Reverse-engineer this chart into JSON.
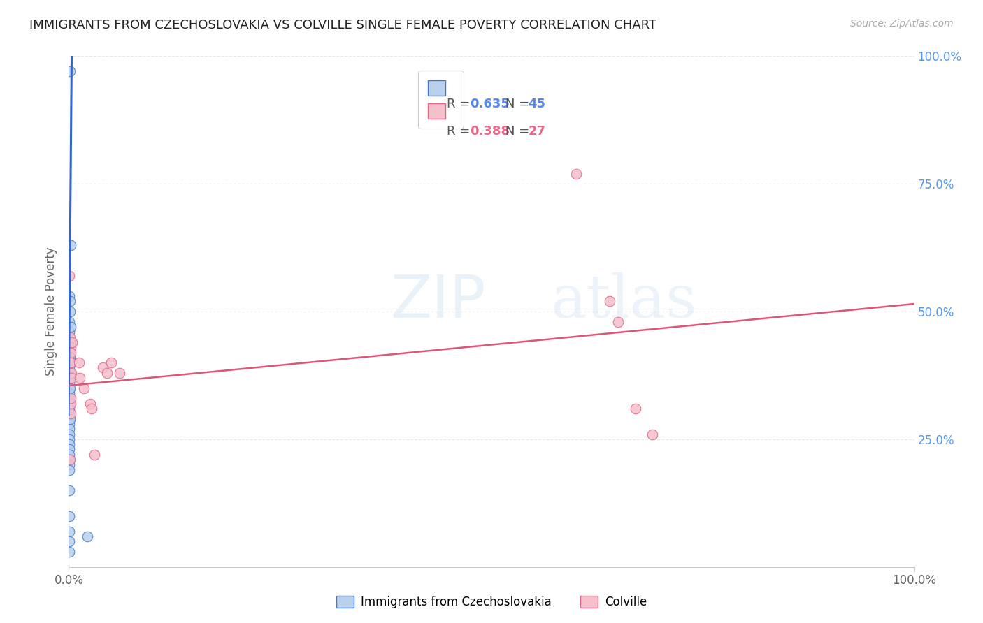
{
  "title": "IMMIGRANTS FROM CZECHOSLOVAKIA VS COLVILLE SINGLE FEMALE POVERTY CORRELATION CHART",
  "source": "Source: ZipAtlas.com",
  "ylabel": "Single Female Poverty",
  "legend_blue_r": "0.635",
  "legend_blue_n": "45",
  "legend_pink_r": "0.388",
  "legend_pink_n": "27",
  "legend_blue_label": "Immigrants from Czechoslovakia",
  "legend_pink_label": "Colville",
  "blue_fill": "#b8d0ec",
  "pink_fill": "#f5bfcc",
  "blue_edge": "#4477cc",
  "pink_edge": "#e06688",
  "blue_line_color": "#3366cc",
  "pink_line_color": "#dd5577",
  "blue_scatter": [
    [
      0.001,
      0.97
    ],
    [
      0.0005,
      0.53
    ],
    [
      0.0007,
      0.48
    ],
    [
      0.0004,
      0.46
    ],
    [
      0.0006,
      0.43
    ],
    [
      0.0008,
      0.42
    ],
    [
      0.0003,
      0.4
    ],
    [
      0.0005,
      0.39
    ],
    [
      0.0007,
      0.38
    ],
    [
      0.0004,
      0.37
    ],
    [
      0.0006,
      0.36
    ],
    [
      0.0003,
      0.35
    ],
    [
      0.0008,
      0.34
    ],
    [
      0.0005,
      0.33
    ],
    [
      0.0004,
      0.32
    ],
    [
      0.0006,
      0.31
    ],
    [
      0.0003,
      0.3
    ],
    [
      0.0007,
      0.29
    ],
    [
      0.0005,
      0.28
    ],
    [
      0.0004,
      0.27
    ],
    [
      0.0006,
      0.26
    ],
    [
      0.0003,
      0.25
    ],
    [
      0.0007,
      0.24
    ],
    [
      0.0005,
      0.23
    ],
    [
      0.0004,
      0.22
    ],
    [
      0.0006,
      0.21
    ],
    [
      0.0003,
      0.2
    ],
    [
      0.0007,
      0.19
    ],
    [
      0.0005,
      0.15
    ],
    [
      0.0004,
      0.1
    ],
    [
      0.0006,
      0.07
    ],
    [
      0.0003,
      0.05
    ],
    [
      0.0007,
      0.03
    ],
    [
      0.0015,
      0.52
    ],
    [
      0.0013,
      0.5
    ],
    [
      0.0018,
      0.47
    ],
    [
      0.0012,
      0.44
    ],
    [
      0.0016,
      0.41
    ],
    [
      0.0014,
      0.38
    ],
    [
      0.0017,
      0.35
    ],
    [
      0.0015,
      0.32
    ],
    [
      0.0013,
      0.29
    ],
    [
      0.0025,
      0.63
    ],
    [
      0.0022,
      0.4
    ],
    [
      0.022,
      0.06
    ]
  ],
  "pink_scatter": [
    [
      0.0008,
      0.57
    ],
    [
      0.0015,
      0.45
    ],
    [
      0.0018,
      0.43
    ],
    [
      0.0022,
      0.42
    ],
    [
      0.0025,
      0.4
    ],
    [
      0.003,
      0.38
    ],
    [
      0.002,
      0.32
    ],
    [
      0.0018,
      0.3
    ],
    [
      0.0012,
      0.21
    ],
    [
      0.0035,
      0.44
    ],
    [
      0.003,
      0.37
    ],
    [
      0.0025,
      0.33
    ],
    [
      0.012,
      0.4
    ],
    [
      0.013,
      0.37
    ],
    [
      0.018,
      0.35
    ],
    [
      0.025,
      0.32
    ],
    [
      0.027,
      0.31
    ],
    [
      0.03,
      0.22
    ],
    [
      0.04,
      0.39
    ],
    [
      0.045,
      0.38
    ],
    [
      0.05,
      0.4
    ],
    [
      0.06,
      0.38
    ],
    [
      0.6,
      0.77
    ],
    [
      0.64,
      0.52
    ],
    [
      0.65,
      0.48
    ],
    [
      0.67,
      0.31
    ],
    [
      0.69,
      0.26
    ]
  ],
  "blue_line": {
    "x0": -0.0003,
    "x1": 0.0035,
    "y0": 0.295,
    "y1": 1.02
  },
  "pink_line": {
    "x0": 0.0,
    "x1": 1.0,
    "y0": 0.355,
    "y1": 0.515
  },
  "watermark_line1": "ZIP",
  "watermark_line2": "atlas",
  "xlim": [
    0.0,
    1.0
  ],
  "ylim": [
    0.0,
    1.0
  ],
  "xticks": [
    0.0,
    1.0
  ],
  "yticks": [
    0.0,
    0.25,
    0.5,
    0.75,
    1.0
  ],
  "grid_color": "#e8e8e8",
  "title_fontsize": 13,
  "source_fontsize": 10,
  "axis_color": "#666666",
  "right_tick_color": "#5599ee",
  "marker_size": 110
}
